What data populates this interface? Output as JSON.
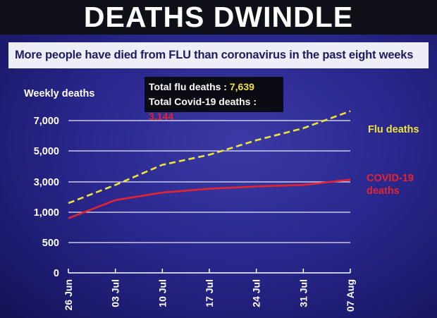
{
  "title": "DEATHS DWINDLE",
  "subtitle": "More people have died from FLU than coronavirus in the past eight weeks",
  "totals": {
    "flu_label": "Total flu deaths : ",
    "flu_value": "7,639",
    "covid_label": "Total Covid-19 deaths : ",
    "covid_value": "3,144"
  },
  "colors": {
    "flu": "#ece43a",
    "covid": "#e2252f",
    "grid": "#ffffff",
    "background": "#2a288e"
  },
  "chart_data": {
    "type": "line",
    "ylabel": "Weekly deaths",
    "xlabel": "",
    "categories": [
      "26 Jun",
      "03 Jul",
      "10 Jul",
      "17 Jul",
      "24 Jul",
      "31 Jul",
      "07 Aug"
    ],
    "y_tick_labels": [
      "0",
      "500",
      "1,000",
      "3,000",
      "5,000",
      "7,000"
    ],
    "grid": "horizontal",
    "series": [
      {
        "name": "Flu deaths",
        "line_style": "dashed",
        "color": "#ece43a",
        "values": [
          1600,
          2800,
          4100,
          4750,
          5700,
          6500,
          7639
        ]
      },
      {
        "name": "COVID-19 deaths",
        "line_style": "solid",
        "color": "#e2252f",
        "values": [
          900,
          1800,
          2300,
          2550,
          2700,
          2800,
          3144
        ]
      }
    ]
  }
}
